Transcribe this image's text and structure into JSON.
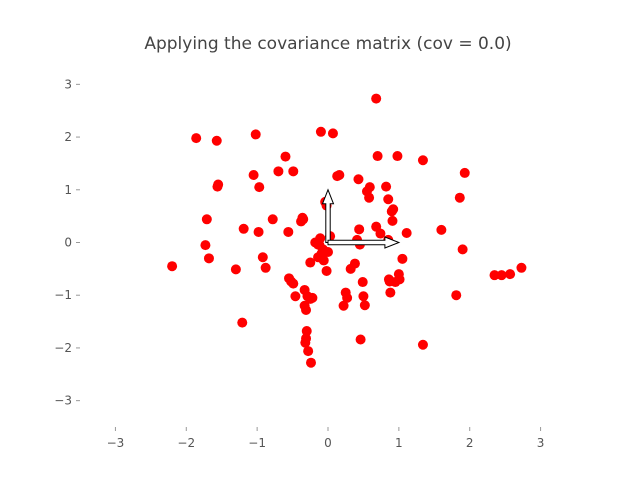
{
  "chart_data": {
    "type": "scatter",
    "title": "Applying the covariance matrix (cov = 0.0)",
    "xlabel": "",
    "ylabel": "",
    "xlim": [
      -3.5,
      3.5
    ],
    "ylim": [
      -3.5,
      3.5
    ],
    "xticks": [
      -3,
      -2,
      -1,
      0,
      1,
      2,
      3
    ],
    "yticks": [
      -3,
      -2,
      -1,
      0,
      1,
      2,
      3
    ],
    "xtick_labels": [
      "−3",
      "−2",
      "−1",
      "0",
      "1",
      "2",
      "3"
    ],
    "ytick_labels": [
      "−3",
      "−2",
      "−1",
      "0",
      "1",
      "2",
      "3"
    ],
    "grid": false,
    "marker_color": "#ff0000",
    "arrow_color": "#000000",
    "arrows": [
      {
        "dx": 0.0,
        "dy": 1.0
      },
      {
        "dx": 1.0,
        "dy": 0.0
      }
    ],
    "series": [
      {
        "x": [
          -2.2,
          -1.86,
          -1.57,
          -1.55,
          -1.56,
          -1.73,
          -1.71,
          -1.68,
          -1.3,
          -1.19,
          -1.21,
          -1.02,
          -1.05,
          -0.97,
          -0.98,
          -0.92,
          -0.88,
          -0.78,
          -0.7,
          -0.6,
          -0.56,
          -0.49,
          -0.55,
          -0.52,
          -0.49,
          -0.46,
          -0.38,
          -0.36,
          -0.35,
          -0.31,
          -0.3,
          -0.28,
          -0.24,
          -0.22,
          -0.18,
          -0.14,
          -0.12,
          -0.11,
          -0.09,
          -0.07,
          -0.06,
          -0.02,
          0.0,
          0.03,
          -0.02,
          -0.04,
          -0.09,
          -0.14,
          -0.25,
          -0.29,
          -0.31,
          -0.33,
          -0.33,
          -0.32,
          -0.1,
          0.07,
          0.13,
          0.22,
          0.25,
          0.27,
          0.32,
          0.38,
          0.41,
          0.43,
          0.44,
          0.49,
          0.5,
          0.46,
          0.52,
          0.55,
          0.59,
          0.68,
          0.7,
          0.74,
          0.82,
          0.85,
          0.86,
          0.87,
          0.88,
          0.9,
          0.91,
          0.92,
          0.85,
          0.98,
          1.0,
          1.01,
          1.05,
          1.11,
          1.34,
          1.34,
          1.6,
          1.81,
          1.86,
          1.9,
          1.93,
          2.35,
          2.45,
          2.57,
          2.73,
          0.68,
          0.95,
          0.16,
          0.58,
          -0.25,
          0.45
        ],
        "y": [
          -0.45,
          1.98,
          1.93,
          1.1,
          1.06,
          -0.05,
          0.44,
          -0.3,
          -0.51,
          0.26,
          -1.52,
          2.05,
          1.28,
          1.05,
          0.2,
          -0.28,
          -0.48,
          0.44,
          1.35,
          1.63,
          0.2,
          -0.78,
          -0.68,
          -0.74,
          1.35,
          -1.02,
          0.4,
          0.47,
          0.44,
          -1.28,
          -1.68,
          -2.06,
          -2.28,
          -1.05,
          0.0,
          -0.04,
          -0.05,
          0.08,
          -0.21,
          -0.13,
          -0.34,
          -0.54,
          -0.18,
          0.12,
          0.7,
          0.77,
          -0.27,
          -0.28,
          -1.07,
          -1.02,
          -1.82,
          -0.9,
          -1.2,
          -1.9,
          2.1,
          2.07,
          1.26,
          -1.2,
          -0.95,
          -1.05,
          -0.5,
          -0.4,
          0.05,
          1.2,
          0.25,
          -0.75,
          -1.02,
          -1.84,
          -1.19,
          0.97,
          1.05,
          2.73,
          1.64,
          0.17,
          1.06,
          0.82,
          -0.7,
          -0.74,
          -0.95,
          0.59,
          0.41,
          0.63,
          0.05,
          1.64,
          -0.6,
          -0.7,
          -0.31,
          0.18,
          1.56,
          -1.94,
          0.24,
          -1.0,
          0.85,
          -0.13,
          1.32,
          -0.62,
          -0.62,
          -0.6,
          -0.48,
          0.3,
          -0.75,
          1.28,
          0.85,
          -0.38,
          -0.04
        ]
      }
    ]
  }
}
